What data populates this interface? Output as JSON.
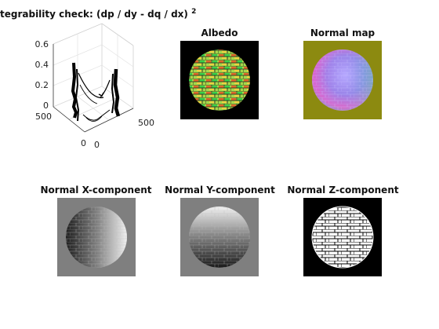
{
  "figure": {
    "panels": [
      {
        "id": "integrability",
        "title": "tegrability check: (dp / dy - dq / dx)",
        "title_exponent": "2"
      },
      {
        "id": "albedo",
        "title": "Albedo"
      },
      {
        "id": "normal_map",
        "title": "Normal map"
      },
      {
        "id": "normal_x",
        "title": "Normal X-component"
      },
      {
        "id": "normal_y",
        "title": "Normal Y-component"
      },
      {
        "id": "normal_z",
        "title": "Normal Z-component"
      }
    ],
    "surface_plot": {
      "z_ticks": [
        "0.6",
        "0.4",
        "0.2",
        "0"
      ],
      "y_ticks": [
        "500",
        "0"
      ],
      "x_ticks": [
        "0",
        "500"
      ]
    }
  },
  "colors": {
    "albedo_bg": "#000000",
    "normal_map_bg": "#8c8a10",
    "normal_x_bg": "#7f7f7f",
    "normal_y_bg": "#7f7f7f",
    "normal_z_bg": "#000000"
  },
  "chart_data": {
    "type": "surface",
    "title": "tegrability check: (dp / dy - dq / dx)",
    "title_exponent": "2",
    "z_ticks": [
      0,
      0.2,
      0.4,
      0.6
    ],
    "x_ticks": [
      0,
      500
    ],
    "y_ticks": [
      0,
      500
    ],
    "zlim": [
      0,
      0.6
    ]
  }
}
